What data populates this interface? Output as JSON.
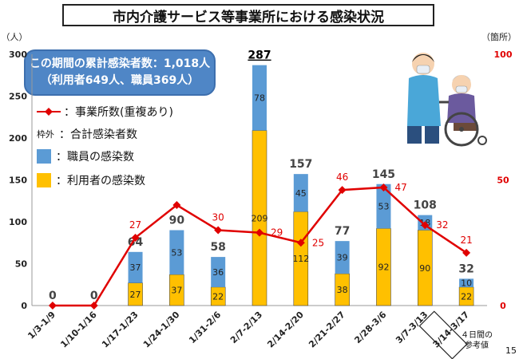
{
  "title": "市内介護サービス等事業所における感染状況",
  "summary": {
    "line1": "この期間の累計感染者数：1,018人",
    "line2": "（利用者649人、職員369人）"
  },
  "legend": {
    "facilities": "：事業所数(重複あり)",
    "total_prefix": "枠外",
    "total": "：合計感染者数",
    "staff": "：職員の感染数",
    "users": "：利用者の感染数"
  },
  "note": "４日間の\n参考値",
  "page_number": "15",
  "colors": {
    "staff": "#5b9bd5",
    "users": "#ffc000",
    "line": "#e00000",
    "total_highlight": "#000000"
  },
  "chart_data": {
    "type": "bar",
    "ylabel_left": "（人）",
    "ylabel_right": "（箇所）",
    "ylim_left": [
      0,
      300
    ],
    "ylim_right": [
      0,
      100
    ],
    "yticks_left": [
      0,
      50,
      100,
      150,
      200,
      250,
      300
    ],
    "yticks_right": [
      0,
      50,
      100
    ],
    "categories": [
      "1/3-1/9",
      "1/10-1/16",
      "1/17-1/23",
      "1/24-1/30",
      "1/31-2/6",
      "2/7-2/13",
      "2/14-2/20",
      "2/21-2/27",
      "2/28-3/6",
      "3/7-3/13",
      "3/14-3/17"
    ],
    "series": [
      {
        "name": "利用者の感染数",
        "values": [
          0,
          0,
          27,
          37,
          22,
          209,
          112,
          38,
          92,
          90,
          22
        ]
      },
      {
        "name": "職員の感染数",
        "values": [
          0,
          0,
          37,
          53,
          36,
          78,
          45,
          39,
          53,
          18,
          10
        ]
      },
      {
        "name": "合計感染者数",
        "values": [
          0,
          0,
          64,
          90,
          58,
          287,
          157,
          77,
          145,
          108,
          32
        ]
      },
      {
        "name": "事業所数(重複あり)",
        "axis": "right",
        "values": [
          null,
          null,
          27,
          40,
          30,
          29,
          25,
          46,
          47,
          32,
          21
        ]
      }
    ],
    "line_labels": [
      "",
      "",
      "27",
      "",
      "30",
      "29",
      "25",
      "46",
      "47",
      "32",
      "21"
    ],
    "boxed_category": "3/14-3/17"
  }
}
